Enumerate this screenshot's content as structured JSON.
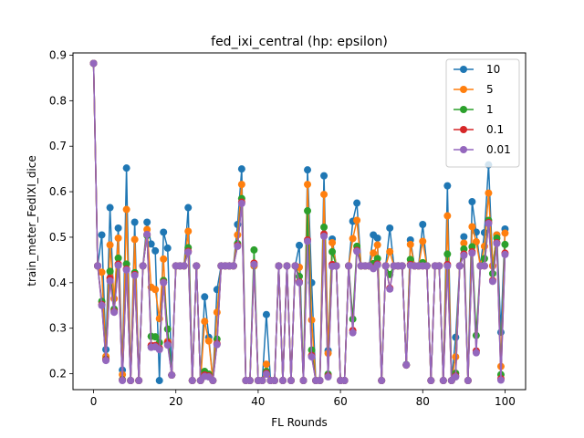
{
  "chart_data": {
    "type": "line",
    "title": "fed_ixi_central (hp: epsilon)",
    "xlabel": "FL Rounds",
    "ylabel": "train_meter_FedIXI_dice",
    "xlim": [
      -5,
      105
    ],
    "ylim": [
      0.165,
      0.905
    ],
    "xticks": [
      0,
      20,
      40,
      60,
      80,
      100
    ],
    "yticks": [
      0.2,
      0.3,
      0.4,
      0.5,
      0.6,
      0.7,
      0.8,
      0.9
    ],
    "grid": false,
    "legend_position": "top-right",
    "x": [
      0,
      1,
      2,
      3,
      4,
      5,
      6,
      7,
      8,
      9,
      10,
      11,
      12,
      13,
      14,
      15,
      16,
      17,
      18,
      19,
      20,
      21,
      22,
      23,
      24,
      25,
      26,
      27,
      28,
      29,
      30,
      31,
      32,
      33,
      34,
      35,
      36,
      37,
      38,
      39,
      40,
      41,
      42,
      43,
      44,
      45,
      46,
      47,
      48,
      49,
      50,
      51,
      52,
      53,
      54,
      55,
      56,
      57,
      58,
      59,
      60,
      61,
      62,
      63,
      64,
      65,
      66,
      67,
      68,
      69,
      70,
      71,
      72,
      73,
      74,
      75,
      76,
      77,
      78,
      79,
      80,
      81,
      82,
      83,
      84,
      85,
      86,
      87,
      88,
      89,
      90,
      91,
      92,
      93,
      94,
      95,
      96,
      97,
      98,
      99,
      100
    ],
    "series": [
      {
        "name": "10",
        "color": "#1f77b4",
        "values": [
          0.882,
          0.437,
          0.505,
          0.253,
          0.565,
          0.34,
          0.52,
          0.208,
          0.652,
          0.185,
          0.533,
          0.185,
          0.437,
          0.533,
          0.485,
          0.47,
          0.185,
          0.511,
          0.476,
          0.197,
          0.437,
          0.437,
          0.437,
          0.565,
          0.185,
          0.437,
          0.185,
          0.369,
          0.28,
          0.185,
          0.385,
          0.437,
          0.437,
          0.437,
          0.437,
          0.528,
          0.65,
          0.185,
          0.185,
          0.437,
          0.185,
          0.185,
          0.33,
          0.185,
          0.185,
          0.437,
          0.185,
          0.437,
          0.185,
          0.437,
          0.482,
          0.185,
          0.648,
          0.4,
          0.185,
          0.185,
          0.635,
          0.251,
          0.496,
          0.437,
          0.185,
          0.185,
          0.437,
          0.535,
          0.575,
          0.437,
          0.437,
          0.437,
          0.505,
          0.498,
          0.185,
          0.437,
          0.52,
          0.437,
          0.437,
          0.437,
          0.22,
          0.494,
          0.437,
          0.437,
          0.528,
          0.437,
          0.185,
          0.437,
          0.437,
          0.185,
          0.613,
          0.185,
          0.28,
          0.437,
          0.501,
          0.185,
          0.578,
          0.511,
          0.437,
          0.51,
          0.659,
          0.437,
          0.505,
          0.291,
          0.518
        ]
      },
      {
        "name": "5",
        "color": "#ff7f0e",
        "values": [
          0.882,
          0.437,
          0.423,
          0.238,
          0.483,
          0.365,
          0.498,
          0.198,
          0.561,
          0.185,
          0.495,
          0.185,
          0.437,
          0.517,
          0.39,
          0.385,
          0.321,
          0.452,
          0.271,
          0.197,
          0.437,
          0.437,
          0.437,
          0.513,
          0.185,
          0.437,
          0.185,
          0.315,
          0.272,
          0.185,
          0.335,
          0.437,
          0.437,
          0.437,
          0.437,
          0.505,
          0.616,
          0.185,
          0.185,
          0.437,
          0.185,
          0.185,
          0.221,
          0.185,
          0.185,
          0.437,
          0.185,
          0.437,
          0.185,
          0.437,
          0.434,
          0.185,
          0.616,
          0.318,
          0.185,
          0.185,
          0.594,
          0.245,
          0.488,
          0.437,
          0.185,
          0.185,
          0.437,
          0.497,
          0.537,
          0.437,
          0.437,
          0.437,
          0.465,
          0.483,
          0.185,
          0.437,
          0.468,
          0.437,
          0.437,
          0.437,
          0.219,
          0.484,
          0.437,
          0.437,
          0.491,
          0.437,
          0.185,
          0.437,
          0.437,
          0.185,
          0.547,
          0.185,
          0.237,
          0.437,
          0.487,
          0.185,
          0.523,
          0.49,
          0.437,
          0.48,
          0.597,
          0.437,
          0.505,
          0.216,
          0.509
        ]
      },
      {
        "name": "1",
        "color": "#2ca02c",
        "values": [
          0.882,
          0.437,
          0.359,
          0.232,
          0.425,
          0.342,
          0.454,
          0.187,
          0.441,
          0.185,
          0.422,
          0.185,
          0.437,
          0.504,
          0.282,
          0.281,
          0.268,
          0.405,
          0.298,
          0.197,
          0.437,
          0.437,
          0.437,
          0.477,
          0.185,
          0.437,
          0.185,
          0.205,
          0.199,
          0.185,
          0.276,
          0.437,
          0.437,
          0.437,
          0.437,
          0.486,
          0.585,
          0.185,
          0.185,
          0.472,
          0.185,
          0.185,
          0.205,
          0.185,
          0.185,
          0.437,
          0.185,
          0.437,
          0.185,
          0.437,
          0.414,
          0.185,
          0.558,
          0.252,
          0.185,
          0.185,
          0.522,
          0.199,
          0.468,
          0.437,
          0.185,
          0.185,
          0.437,
          0.32,
          0.48,
          0.437,
          0.437,
          0.437,
          0.442,
          0.453,
          0.185,
          0.437,
          0.418,
          0.437,
          0.437,
          0.437,
          0.219,
          0.451,
          0.437,
          0.437,
          0.444,
          0.437,
          0.185,
          0.437,
          0.437,
          0.185,
          0.463,
          0.185,
          0.201,
          0.437,
          0.474,
          0.185,
          0.479,
          0.284,
          0.437,
          0.453,
          0.537,
          0.42,
          0.498,
          0.198,
          0.484
        ]
      },
      {
        "name": "0.1",
        "color": "#d62728",
        "values": [
          0.882,
          0.437,
          0.352,
          0.231,
          0.41,
          0.337,
          0.441,
          0.186,
          0.43,
          0.185,
          0.418,
          0.185,
          0.437,
          0.506,
          0.262,
          0.262,
          0.256,
          0.401,
          0.268,
          0.197,
          0.437,
          0.437,
          0.437,
          0.469,
          0.185,
          0.437,
          0.185,
          0.197,
          0.195,
          0.185,
          0.266,
          0.437,
          0.437,
          0.437,
          0.437,
          0.482,
          0.577,
          0.185,
          0.185,
          0.443,
          0.185,
          0.185,
          0.201,
          0.185,
          0.185,
          0.437,
          0.185,
          0.437,
          0.185,
          0.437,
          0.402,
          0.185,
          0.494,
          0.24,
          0.185,
          0.185,
          0.507,
          0.195,
          0.44,
          0.437,
          0.185,
          0.185,
          0.437,
          0.295,
          0.471,
          0.437,
          0.437,
          0.437,
          0.433,
          0.441,
          0.185,
          0.437,
          0.388,
          0.437,
          0.437,
          0.437,
          0.219,
          0.44,
          0.437,
          0.437,
          0.437,
          0.437,
          0.185,
          0.437,
          0.437,
          0.185,
          0.44,
          0.185,
          0.195,
          0.437,
          0.463,
          0.185,
          0.468,
          0.25,
          0.437,
          0.437,
          0.532,
          0.405,
          0.488,
          0.189,
          0.465
        ]
      },
      {
        "name": "0.01",
        "color": "#9467bd",
        "values": [
          0.882,
          0.437,
          0.35,
          0.229,
          0.404,
          0.335,
          0.438,
          0.185,
          0.428,
          0.185,
          0.416,
          0.185,
          0.437,
          0.506,
          0.258,
          0.259,
          0.253,
          0.4,
          0.263,
          0.197,
          0.437,
          0.437,
          0.437,
          0.467,
          0.185,
          0.437,
          0.185,
          0.194,
          0.193,
          0.185,
          0.264,
          0.437,
          0.437,
          0.437,
          0.437,
          0.48,
          0.574,
          0.185,
          0.185,
          0.44,
          0.185,
          0.185,
          0.199,
          0.185,
          0.185,
          0.437,
          0.185,
          0.437,
          0.185,
          0.437,
          0.4,
          0.185,
          0.491,
          0.237,
          0.185,
          0.185,
          0.502,
          0.193,
          0.436,
          0.437,
          0.185,
          0.185,
          0.437,
          0.29,
          0.469,
          0.437,
          0.437,
          0.437,
          0.431,
          0.439,
          0.185,
          0.437,
          0.386,
          0.437,
          0.437,
          0.437,
          0.219,
          0.438,
          0.437,
          0.437,
          0.437,
          0.437,
          0.185,
          0.437,
          0.437,
          0.185,
          0.437,
          0.185,
          0.193,
          0.437,
          0.46,
          0.185,
          0.465,
          0.246,
          0.437,
          0.437,
          0.53,
          0.403,
          0.486,
          0.186,
          0.462
        ]
      }
    ]
  }
}
